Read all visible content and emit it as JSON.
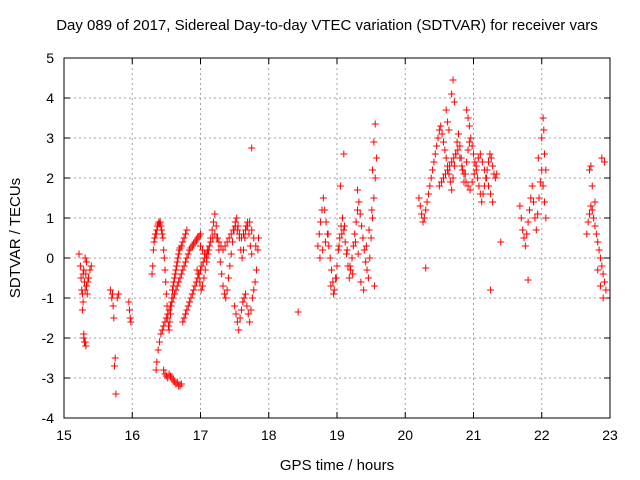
{
  "chart_data": {
    "type": "scatter",
    "title": "Day 089 of 2017, Sidereal Day-to-day VTEC variation (SDTVAR) for receiver vars",
    "xlabel": "GPS time / hours",
    "ylabel": "SDTVAR / TECUs",
    "xlim": [
      15,
      23
    ],
    "ylim": [
      -4,
      5
    ],
    "xticks": [
      "15",
      "16",
      "17",
      "18",
      "19",
      "20",
      "21",
      "22",
      "23"
    ],
    "yticks": [
      "-4",
      "-3",
      "-2",
      "-1",
      "0",
      "1",
      "2",
      "3",
      "4",
      "5"
    ],
    "grid": true,
    "marker": "+",
    "color": "#ff0000",
    "series": [
      {
        "name": "SDTVAR",
        "x": [
          15.22,
          15.24,
          15.25,
          15.27,
          15.28,
          15.29,
          15.3,
          15.31,
          15.32,
          15.33,
          15.35,
          15.36,
          15.38,
          15.4,
          15.27,
          15.29,
          15.31,
          15.3,
          15.29,
          15.32,
          15.33,
          15.31,
          15.28,
          15.26,
          15.34,
          15.68,
          15.7,
          15.72,
          15.73,
          15.75,
          15.78,
          15.8,
          15.74,
          15.76,
          15.71,
          15.95,
          15.96,
          15.97,
          15.98,
          16.29,
          16.3,
          16.31,
          16.32,
          16.33,
          16.34,
          16.35,
          16.36,
          16.37,
          16.38,
          16.39,
          16.4,
          16.41,
          16.42,
          16.43,
          16.44,
          16.45,
          16.46,
          16.47,
          16.48,
          16.49,
          16.5,
          16.51,
          16.52,
          16.53,
          16.54,
          16.55,
          16.56,
          16.57,
          16.58,
          16.59,
          16.6,
          16.61,
          16.62,
          16.63,
          16.64,
          16.65,
          16.66,
          16.67,
          16.68,
          16.69,
          16.7,
          16.72,
          16.74,
          16.76,
          16.78,
          16.8,
          16.35,
          16.36,
          16.38,
          16.4,
          16.42,
          16.44,
          16.46,
          16.48,
          16.5,
          16.52,
          16.54,
          16.56,
          16.58,
          16.6,
          16.62,
          16.64,
          16.66,
          16.68,
          16.7,
          16.72,
          16.74,
          16.76,
          16.78,
          16.8,
          16.82,
          16.84,
          16.86,
          16.88,
          16.9,
          16.92,
          16.94,
          16.96,
          16.98,
          17.0,
          16.46,
          16.48,
          16.5,
          16.52,
          16.54,
          16.56,
          16.58,
          16.6,
          16.62,
          16.64,
          16.66,
          16.68,
          16.7,
          16.72,
          16.74,
          16.76,
          16.78,
          16.8,
          16.82,
          16.84,
          16.86,
          16.88,
          16.9,
          16.92,
          16.94,
          16.96,
          16.98,
          17.0,
          17.02,
          17.04,
          17.06,
          17.08,
          17.1,
          16.95,
          16.97,
          16.99,
          17.01,
          17.03,
          17.05,
          17.07,
          17.09,
          17.11,
          17.13,
          17.15,
          17.17,
          17.19,
          17.21,
          17.23,
          17.25,
          17.27,
          17.29,
          17.31,
          17.33,
          17.35,
          17.37,
          17.39,
          17.41,
          17.43,
          17.45,
          17.47,
          17.49,
          17.51,
          17.53,
          17.55,
          17.57,
          17.59,
          17.61,
          17.63,
          17.65,
          17.67,
          17.69,
          17.71,
          17.73,
          17.75,
          17.0,
          17.03,
          17.06,
          17.09,
          17.12,
          17.15,
          17.18,
          17.21,
          17.24,
          17.27,
          17.3,
          17.33,
          17.36,
          17.39,
          17.42,
          17.45,
          17.48,
          17.51,
          17.54,
          17.57,
          17.6,
          17.63,
          17.66,
          17.69,
          17.72,
          17.75,
          17.78,
          17.81,
          17.84,
          17.5,
          17.52,
          17.54,
          17.56,
          17.58,
          17.6,
          17.62,
          17.64,
          17.66,
          17.68,
          17.7,
          17.72,
          17.74,
          17.76,
          17.78,
          17.8,
          17.82,
          17.85,
          17.75,
          18.43,
          18.72,
          18.74,
          18.76,
          18.78,
          18.8,
          18.82,
          18.84,
          18.86,
          18.88,
          18.9,
          18.92,
          18.94,
          18.96,
          18.98,
          19.0,
          19.02,
          19.04,
          19.06,
          19.08,
          19.1,
          19.12,
          19.14,
          19.16,
          19.18,
          19.2,
          19.22,
          19.24,
          19.26,
          19.28,
          19.3,
          19.32,
          19.34,
          19.36,
          19.38,
          19.4,
          19.42,
          19.44,
          19.46,
          19.48,
          19.5,
          19.52,
          19.54,
          19.56,
          19.58,
          18.75,
          18.79,
          18.83,
          18.87,
          18.91,
          18.95,
          18.99,
          19.03,
          19.07,
          19.11,
          19.15,
          19.19,
          19.23,
          19.27,
          19.31,
          19.35,
          19.39,
          19.43,
          19.47,
          19.51,
          19.55,
          19.05,
          19.1,
          19.3,
          19.52,
          19.54,
          19.56,
          20.2,
          20.22,
          20.24,
          20.26,
          20.28,
          20.3,
          20.32,
          20.34,
          20.36,
          20.38,
          20.4,
          20.42,
          20.44,
          20.46,
          20.48,
          20.5,
          20.52,
          20.54,
          20.56,
          20.58,
          20.6,
          20.62,
          20.64,
          20.66,
          20.68,
          20.7,
          20.72,
          20.74,
          20.76,
          20.78,
          20.8,
          20.82,
          20.84,
          20.86,
          20.88,
          20.9,
          20.92,
          20.94,
          20.96,
          20.98,
          21.0,
          21.02,
          21.04,
          21.06,
          21.08,
          21.1,
          21.12,
          21.14,
          21.16,
          21.18,
          21.2,
          21.22,
          21.24,
          21.26,
          21.28,
          21.3,
          21.32,
          21.34,
          20.5,
          20.53,
          20.56,
          20.59,
          20.62,
          20.65,
          20.68,
          20.71,
          20.74,
          20.77,
          20.8,
          20.83,
          20.86,
          20.89,
          20.92,
          20.95,
          20.98,
          21.01,
          21.04,
          21.07,
          21.1,
          21.13,
          21.16,
          21.19,
          21.22,
          21.25,
          21.28,
          20.68,
          20.7,
          20.72,
          20.9,
          20.92,
          20.94,
          20.6,
          20.62,
          20.64,
          20.3,
          21.25,
          21.4,
          21.68,
          21.7,
          21.72,
          21.74,
          21.76,
          21.78,
          21.8,
          21.82,
          21.84,
          21.86,
          21.88,
          21.9,
          21.92,
          21.94,
          21.96,
          21.98,
          22.0,
          22.02,
          22.04,
          22.06,
          21.8,
          21.95,
          22.0,
          22.02,
          22.04,
          22.06,
          22.03,
          22.66,
          22.68,
          22.7,
          22.72,
          22.74,
          22.76,
          22.78,
          22.8,
          22.82,
          22.84,
          22.86,
          22.88,
          22.9,
          22.92,
          22.94,
          22.7,
          22.74,
          22.78,
          22.82,
          22.86,
          22.9,
          22.72,
          22.88,
          22.92
        ],
        "y": [
          0.1,
          -0.2,
          -0.5,
          -0.9,
          -1.1,
          -0.3,
          -0.6,
          -0.8,
          -0.4,
          -0.7,
          -0.6,
          -0.5,
          -0.3,
          -0.2,
          -1.3,
          -1.9,
          -2.1,
          -2.1,
          -2.0,
          -2.2,
          -0.1,
          0.0,
          -0.4,
          -0.8,
          -0.9,
          -0.8,
          -1.0,
          -1.2,
          -1.5,
          -2.5,
          -1.0,
          -0.9,
          -2.7,
          -3.4,
          -0.9,
          -1.1,
          -1.3,
          -1.5,
          -1.6,
          -0.4,
          -0.2,
          0.2,
          0.4,
          0.5,
          0.6,
          0.6,
          0.7,
          0.8,
          0.85,
          0.9,
          0.85,
          0.9,
          0.8,
          0.7,
          0.6,
          0.5,
          0.2,
          0.0,
          -0.3,
          -0.6,
          -0.9,
          -1.2,
          -1.5,
          -1.7,
          -1.8,
          -1.6,
          -1.4,
          -1.2,
          -1.0,
          -0.8,
          -0.7,
          -0.6,
          -0.5,
          -0.4,
          -0.3,
          -0.2,
          -0.1,
          0.0,
          0.1,
          0.2,
          0.25,
          0.3,
          0.4,
          0.5,
          0.6,
          0.7,
          -2.8,
          -2.6,
          -2.3,
          -2.1,
          -1.9,
          -1.8,
          -1.7,
          -1.6,
          -1.5,
          -1.4,
          -1.3,
          -1.2,
          -1.1,
          -1.0,
          -0.9,
          -0.8,
          -0.7,
          -0.6,
          -0.5,
          -0.4,
          -0.3,
          -0.2,
          -0.1,
          0.0,
          0.1,
          0.2,
          0.25,
          0.3,
          0.35,
          0.4,
          0.45,
          0.5,
          0.55,
          0.6,
          -2.8,
          -2.9,
          -2.95,
          -3.0,
          -2.9,
          -2.95,
          -3.0,
          -3.05,
          -3.1,
          -3.15,
          -3.1,
          -3.2,
          -3.2,
          -3.15,
          -1.6,
          -1.5,
          -1.4,
          -1.3,
          -1.2,
          -1.1,
          -1.0,
          -0.9,
          -0.8,
          -0.7,
          -0.6,
          -0.5,
          -0.4,
          -0.3,
          -0.2,
          -0.1,
          0.0,
          0.1,
          0.2,
          -0.3,
          -0.4,
          -0.6,
          -0.8,
          -0.7,
          -0.5,
          -0.3,
          -0.1,
          0.1,
          0.3,
          0.5,
          0.7,
          0.9,
          1.1,
          0.8,
          0.5,
          0.2,
          -0.1,
          -0.4,
          -0.7,
          -0.9,
          -1.0,
          -0.8,
          -0.5,
          -0.2,
          0.1,
          0.4,
          0.7,
          0.9,
          1.0,
          0.8,
          0.5,
          0.2,
          0.0,
          0.2,
          0.5,
          0.8,
          0.9,
          0.6,
          0.3,
          0.1,
          0.3,
          0.2,
          0.1,
          0.0,
          0.2,
          0.4,
          0.5,
          0.6,
          0.5,
          0.4,
          0.3,
          0.2,
          0.3,
          0.4,
          0.5,
          0.6,
          0.7,
          0.8,
          0.7,
          0.6,
          0.5,
          0.6,
          0.7,
          0.8,
          0.9,
          0.7,
          0.5,
          0.3,
          0.2,
          -1.2,
          -1.4,
          -1.6,
          -1.8,
          -1.5,
          -1.3,
          -1.1,
          -1.0,
          -0.9,
          -1.2,
          -1.4,
          -1.6,
          -1.3,
          -1.0,
          -0.8,
          -0.6,
          -0.3,
          0.5,
          2.75,
          -1.35,
          0.3,
          0.6,
          0.9,
          1.2,
          1.5,
          1.2,
          0.9,
          0.6,
          0.3,
          0.0,
          -0.3,
          -0.6,
          -0.8,
          -0.5,
          -0.2,
          0.2,
          0.5,
          0.8,
          1.0,
          0.7,
          0.4,
          0.1,
          -0.2,
          -0.5,
          -0.3,
          0.0,
          0.3,
          0.6,
          0.9,
          1.2,
          1.4,
          1.1,
          0.8,
          0.5,
          0.2,
          -0.1,
          -0.3,
          -0.5,
          0.0,
          0.5,
          1.0,
          1.5,
          2.0,
          2.5,
          0.0,
          0.2,
          0.4,
          0.6,
          -0.7,
          -0.9,
          -0.5,
          0.3,
          0.6,
          0.8,
          0.2,
          -0.2,
          -0.4,
          0.4,
          0.1,
          -0.6,
          -0.8,
          0.3,
          0.7,
          1.2,
          -0.7,
          1.8,
          2.6,
          1.7,
          2.2,
          2.9,
          3.35,
          1.5,
          1.3,
          1.1,
          0.9,
          1.0,
          1.2,
          1.4,
          1.6,
          1.8,
          2.0,
          2.2,
          2.4,
          2.6,
          2.8,
          3.0,
          3.2,
          3.3,
          3.1,
          2.9,
          2.7,
          2.5,
          2.3,
          2.1,
          1.9,
          1.7,
          2.0,
          2.3,
          2.6,
          2.9,
          3.1,
          2.8,
          2.5,
          2.2,
          1.9,
          2.1,
          2.4,
          2.7,
          2.9,
          3.0,
          2.8,
          2.6,
          2.4,
          2.2,
          2.0,
          1.8,
          1.6,
          1.4,
          1.6,
          1.8,
          2.0,
          2.2,
          2.4,
          2.6,
          2.5,
          2.3,
          2.1,
          2.0,
          2.1,
          1.8,
          1.9,
          2.0,
          2.1,
          2.2,
          2.3,
          2.4,
          2.5,
          2.6,
          2.7,
          2.5,
          2.3,
          2.1,
          1.9,
          1.8,
          1.7,
          1.9,
          2.1,
          2.3,
          2.5,
          2.6,
          2.4,
          2.2,
          2.0,
          1.8,
          1.6,
          1.4,
          4.1,
          4.45,
          3.9,
          3.7,
          3.5,
          3.3,
          3.7,
          3.4,
          3.2,
          -0.25,
          -0.8,
          0.4,
          1.3,
          1.0,
          0.7,
          0.5,
          0.3,
          0.6,
          0.9,
          1.2,
          1.5,
          1.8,
          1.4,
          1.0,
          0.7,
          1.1,
          1.5,
          1.9,
          2.2,
          1.8,
          1.4,
          1.0,
          -0.55,
          2.5,
          3.0,
          3.5,
          2.6,
          2.2,
          3.2,
          0.6,
          0.9,
          1.1,
          1.3,
          1.2,
          1.0,
          0.8,
          0.6,
          0.4,
          0.2,
          0.0,
          -0.2,
          -0.4,
          -0.6,
          -0.8,
          2.2,
          1.8,
          1.4,
          -0.3,
          -0.7,
          -1.0,
          2.3,
          2.5,
          2.4
        ]
      }
    ]
  }
}
